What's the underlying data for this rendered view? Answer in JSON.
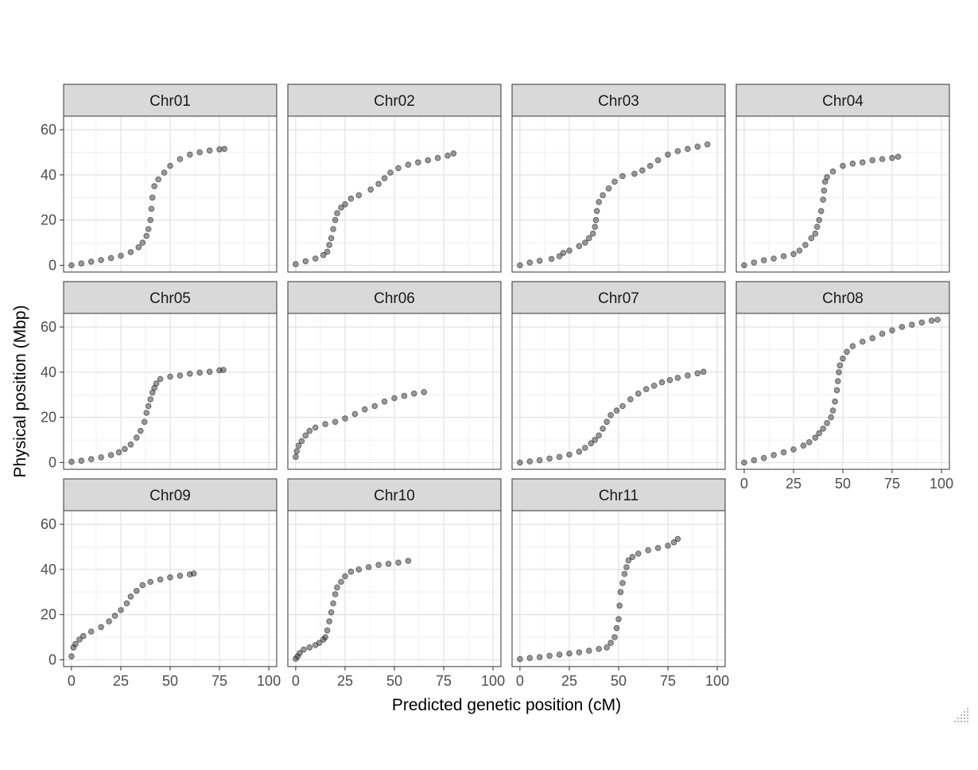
{
  "chart_data": {
    "type": "scatter",
    "facet": "wrap",
    "ncol": 4,
    "xlabel": "Predicted genetic position (cM)",
    "ylabel": "Physical position (Mbp)",
    "xlim": [
      -4,
      104
    ],
    "ylim": [
      -3,
      66
    ],
    "x_ticks": [
      0,
      25,
      50,
      75,
      100
    ],
    "x_tick_labels": [
      "0",
      "25",
      "50",
      "75",
      "100"
    ],
    "y_ticks": [
      0,
      20,
      40,
      60
    ],
    "y_tick_labels": [
      "0",
      "20",
      "40",
      "60"
    ],
    "grid": true,
    "point_color": "#333333",
    "strip_color": "#d9d9d9",
    "panels": [
      {
        "name": "Chr01",
        "points": [
          [
            0,
            0
          ],
          [
            5,
            0.8
          ],
          [
            10,
            1.6
          ],
          [
            15,
            2.3
          ],
          [
            20,
            3.2
          ],
          [
            25,
            4.2
          ],
          [
            30,
            5.8
          ],
          [
            34,
            8
          ],
          [
            36,
            10
          ],
          [
            38,
            13
          ],
          [
            39,
            16
          ],
          [
            40,
            20
          ],
          [
            40.5,
            25
          ],
          [
            41,
            30
          ],
          [
            42,
            35
          ],
          [
            44,
            38
          ],
          [
            47,
            41
          ],
          [
            50,
            44
          ],
          [
            55,
            47
          ],
          [
            60,
            49
          ],
          [
            65,
            50
          ],
          [
            70,
            50.8
          ],
          [
            75,
            51.3
          ],
          [
            77.5,
            51.5
          ]
        ]
      },
      {
        "name": "Chr02",
        "points": [
          [
            0,
            0.5
          ],
          [
            5,
            1.8
          ],
          [
            10,
            3
          ],
          [
            14,
            4.5
          ],
          [
            16,
            6
          ],
          [
            17,
            9
          ],
          [
            18,
            12
          ],
          [
            19,
            16
          ],
          [
            20,
            20
          ],
          [
            21,
            23
          ],
          [
            23,
            25.5
          ],
          [
            25,
            27
          ],
          [
            28,
            29.5
          ],
          [
            32,
            31
          ],
          [
            38,
            33.5
          ],
          [
            42,
            36
          ],
          [
            45,
            38.5
          ],
          [
            48,
            41
          ],
          [
            52,
            43
          ],
          [
            57,
            44.5
          ],
          [
            62,
            45.5
          ],
          [
            67,
            46.5
          ],
          [
            72,
            47.5
          ],
          [
            77,
            48.5
          ],
          [
            80,
            49.5
          ]
        ]
      },
      {
        "name": "Chr03",
        "points": [
          [
            0,
            0
          ],
          [
            5,
            1.2
          ],
          [
            10,
            2
          ],
          [
            16,
            2.8
          ],
          [
            20,
            4
          ],
          [
            22,
            5.5
          ],
          [
            25,
            6.5
          ],
          [
            30,
            8.5
          ],
          [
            33,
            10
          ],
          [
            35,
            12
          ],
          [
            37,
            14
          ],
          [
            38,
            17
          ],
          [
            38.5,
            20
          ],
          [
            39,
            24
          ],
          [
            40,
            28
          ],
          [
            42,
            31
          ],
          [
            45,
            34
          ],
          [
            48,
            37
          ],
          [
            52,
            39.5
          ],
          [
            58,
            40.5
          ],
          [
            62,
            42
          ],
          [
            66,
            44
          ],
          [
            70,
            46.5
          ],
          [
            75,
            49
          ],
          [
            80,
            50.5
          ],
          [
            85,
            51.5
          ],
          [
            90,
            52.5
          ],
          [
            95,
            53.5
          ]
        ]
      },
      {
        "name": "Chr04",
        "points": [
          [
            0,
            0
          ],
          [
            5,
            1.2
          ],
          [
            10,
            2.2
          ],
          [
            15,
            3
          ],
          [
            20,
            4
          ],
          [
            25,
            5
          ],
          [
            28,
            6.5
          ],
          [
            31,
            9
          ],
          [
            34,
            12
          ],
          [
            36,
            14
          ],
          [
            37,
            17
          ],
          [
            38,
            20
          ],
          [
            39,
            24
          ],
          [
            40,
            29
          ],
          [
            40.5,
            33
          ],
          [
            41,
            37
          ],
          [
            42,
            39
          ],
          [
            45,
            41.5
          ],
          [
            50,
            44
          ],
          [
            55,
            45
          ],
          [
            60,
            45.5
          ],
          [
            65,
            46.5
          ],
          [
            70,
            47
          ],
          [
            75,
            47.5
          ],
          [
            78,
            48
          ]
        ]
      },
      {
        "name": "Chr05",
        "points": [
          [
            0,
            0.3
          ],
          [
            5,
            0.8
          ],
          [
            10,
            1.5
          ],
          [
            15,
            2.3
          ],
          [
            20,
            3.3
          ],
          [
            24,
            4.5
          ],
          [
            27,
            6
          ],
          [
            30,
            8
          ],
          [
            33,
            11
          ],
          [
            35,
            14
          ],
          [
            37,
            18
          ],
          [
            38,
            22
          ],
          [
            39,
            25
          ],
          [
            40,
            28
          ],
          [
            41,
            31
          ],
          [
            42,
            33
          ],
          [
            43,
            35
          ],
          [
            45,
            37
          ],
          [
            50,
            38
          ],
          [
            55,
            38.5
          ],
          [
            60,
            39.3
          ],
          [
            65,
            39.8
          ],
          [
            70,
            40.2
          ],
          [
            75,
            40.8
          ],
          [
            77,
            41
          ]
        ]
      },
      {
        "name": "Chr06",
        "points": [
          [
            0,
            2.5
          ],
          [
            0.5,
            5
          ],
          [
            1.5,
            7.5
          ],
          [
            3,
            9.5
          ],
          [
            5,
            12
          ],
          [
            7,
            14
          ],
          [
            10,
            15.5
          ],
          [
            15,
            17
          ],
          [
            20,
            18
          ],
          [
            25,
            19.5
          ],
          [
            30,
            21.5
          ],
          [
            35,
            23.5
          ],
          [
            40,
            25
          ],
          [
            45,
            27
          ],
          [
            50,
            28.5
          ],
          [
            55,
            29.5
          ],
          [
            60,
            30.5
          ],
          [
            65,
            31.2
          ]
        ]
      },
      {
        "name": "Chr07",
        "points": [
          [
            0,
            0
          ],
          [
            5,
            0.5
          ],
          [
            10,
            1
          ],
          [
            15,
            1.8
          ],
          [
            20,
            2.5
          ],
          [
            25,
            3.5
          ],
          [
            30,
            4.8
          ],
          [
            33,
            6.5
          ],
          [
            36,
            8.5
          ],
          [
            38,
            10
          ],
          [
            40,
            12
          ],
          [
            42,
            15
          ],
          [
            44,
            18
          ],
          [
            46,
            21
          ],
          [
            49,
            23
          ],
          [
            52,
            25
          ],
          [
            56,
            28
          ],
          [
            60,
            30.5
          ],
          [
            64,
            32.5
          ],
          [
            68,
            34
          ],
          [
            72,
            35.5
          ],
          [
            76,
            36.5
          ],
          [
            80,
            37.5
          ],
          [
            85,
            38.5
          ],
          [
            90,
            39.5
          ],
          [
            93,
            40.2
          ]
        ]
      },
      {
        "name": "Chr08",
        "points": [
          [
            0,
            0
          ],
          [
            5,
            1
          ],
          [
            10,
            2
          ],
          [
            15,
            3.3
          ],
          [
            20,
            4.5
          ],
          [
            25,
            5.8
          ],
          [
            30,
            7.5
          ],
          [
            33,
            9
          ],
          [
            36,
            11
          ],
          [
            38,
            13
          ],
          [
            40,
            15
          ],
          [
            42,
            17.5
          ],
          [
            44,
            20
          ],
          [
            45,
            23
          ],
          [
            46,
            27
          ],
          [
            47,
            32
          ],
          [
            47.5,
            36
          ],
          [
            48,
            40
          ],
          [
            48.5,
            43
          ],
          [
            50,
            46
          ],
          [
            52,
            49
          ],
          [
            55,
            51.5
          ],
          [
            60,
            53.5
          ],
          [
            65,
            55
          ],
          [
            70,
            57
          ],
          [
            75,
            58.5
          ],
          [
            80,
            60
          ],
          [
            85,
            61
          ],
          [
            90,
            62
          ],
          [
            95,
            62.8
          ],
          [
            98,
            63.2
          ]
        ]
      },
      {
        "name": "Chr09",
        "points": [
          [
            0,
            1.5
          ],
          [
            1,
            5.5
          ],
          [
            2,
            7
          ],
          [
            4,
            9
          ],
          [
            6,
            10.5
          ],
          [
            10,
            12.5
          ],
          [
            15,
            14.5
          ],
          [
            19,
            17
          ],
          [
            22,
            19.5
          ],
          [
            25,
            22
          ],
          [
            28,
            25
          ],
          [
            30,
            28
          ],
          [
            33,
            30.5
          ],
          [
            36,
            33
          ],
          [
            40,
            34.5
          ],
          [
            45,
            35.5
          ],
          [
            50,
            36.5
          ],
          [
            55,
            37.2
          ],
          [
            60,
            37.8
          ],
          [
            62,
            38.2
          ]
        ]
      },
      {
        "name": "Chr10",
        "points": [
          [
            0,
            0.5
          ],
          [
            1,
            1.5
          ],
          [
            2,
            3
          ],
          [
            4,
            4.5
          ],
          [
            7,
            5.5
          ],
          [
            10,
            6.5
          ],
          [
            12,
            7.5
          ],
          [
            14,
            9
          ],
          [
            15,
            10
          ],
          [
            16,
            13
          ],
          [
            17,
            17
          ],
          [
            18,
            21
          ],
          [
            19,
            25
          ],
          [
            20,
            29
          ],
          [
            21,
            32
          ],
          [
            23,
            34.5
          ],
          [
            25,
            37
          ],
          [
            28,
            39
          ],
          [
            32,
            40
          ],
          [
            37,
            41
          ],
          [
            42,
            42
          ],
          [
            47,
            42.5
          ],
          [
            52,
            43
          ],
          [
            57,
            43.8
          ]
        ]
      },
      {
        "name": "Chr11",
        "points": [
          [
            0,
            0.3
          ],
          [
            5,
            0.8
          ],
          [
            10,
            1.2
          ],
          [
            15,
            1.8
          ],
          [
            20,
            2.3
          ],
          [
            25,
            2.8
          ],
          [
            30,
            3.3
          ],
          [
            35,
            4
          ],
          [
            40,
            4.8
          ],
          [
            44,
            5.5
          ],
          [
            46,
            7.5
          ],
          [
            48,
            10
          ],
          [
            49,
            14
          ],
          [
            50,
            18
          ],
          [
            50.5,
            24
          ],
          [
            51,
            30
          ],
          [
            52,
            34
          ],
          [
            53,
            38
          ],
          [
            54,
            41
          ],
          [
            55,
            44
          ],
          [
            57,
            45.5
          ],
          [
            60,
            47
          ],
          [
            65,
            48.5
          ],
          [
            70,
            49.5
          ],
          [
            75,
            50.5
          ],
          [
            78,
            52
          ],
          [
            80,
            53.5
          ]
        ]
      }
    ]
  }
}
